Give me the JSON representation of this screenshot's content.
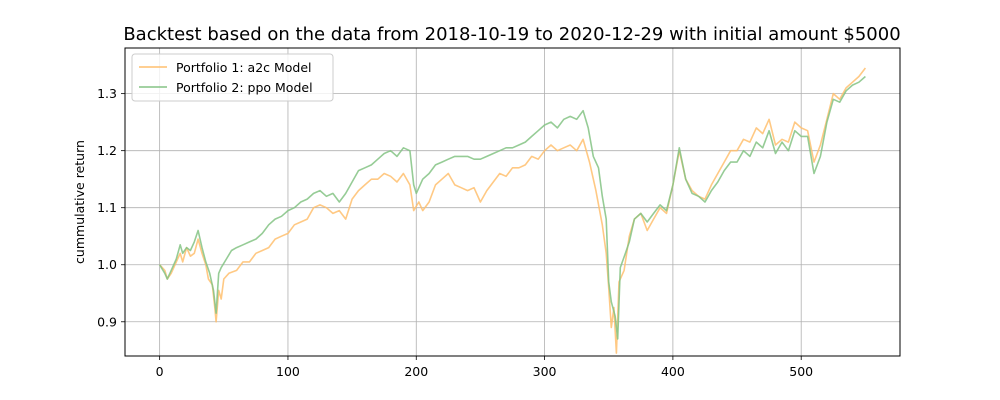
{
  "chart_data": {
    "type": "line",
    "title": "Backtest based on the data from 2018-10-19 to 2020-12-29 with initial amount $5000",
    "xlabel": "",
    "ylabel": "cummulative return",
    "xlim": [
      -27,
      577
    ],
    "ylim": [
      0.84,
      1.38
    ],
    "xticks": [
      0,
      100,
      200,
      300,
      400,
      500
    ],
    "yticks": [
      0.9,
      1.0,
      1.1,
      1.2,
      1.3
    ],
    "xtick_labels": [
      "0",
      "100",
      "200",
      "300",
      "400",
      "500"
    ],
    "ytick_labels": [
      "0.9",
      "1.0",
      "1.1",
      "1.2",
      "1.3"
    ],
    "grid": true,
    "legend_position": "top-left",
    "series": [
      {
        "name": "Portfolio 1: a2c Model",
        "color": "#ffbf6e",
        "points": [
          [
            0,
            1.0
          ],
          [
            4,
            0.99
          ],
          [
            6,
            0.975
          ],
          [
            9,
            0.985
          ],
          [
            13,
            1.005
          ],
          [
            16,
            1.02
          ],
          [
            18,
            1.005
          ],
          [
            21,
            1.03
          ],
          [
            24,
            1.015
          ],
          [
            27,
            1.02
          ],
          [
            30,
            1.045
          ],
          [
            33,
            1.02
          ],
          [
            36,
            1.0
          ],
          [
            38,
            0.975
          ],
          [
            41,
            0.965
          ],
          [
            43,
            0.925
          ],
          [
            44,
            0.9
          ],
          [
            46,
            0.955
          ],
          [
            48,
            0.94
          ],
          [
            50,
            0.975
          ],
          [
            54,
            0.985
          ],
          [
            60,
            0.99
          ],
          [
            65,
            1.005
          ],
          [
            70,
            1.005
          ],
          [
            75,
            1.02
          ],
          [
            80,
            1.025
          ],
          [
            85,
            1.03
          ],
          [
            90,
            1.045
          ],
          [
            95,
            1.05
          ],
          [
            100,
            1.055
          ],
          [
            105,
            1.07
          ],
          [
            110,
            1.075
          ],
          [
            115,
            1.08
          ],
          [
            120,
            1.1
          ],
          [
            125,
            1.105
          ],
          [
            130,
            1.1
          ],
          [
            135,
            1.09
          ],
          [
            140,
            1.095
          ],
          [
            145,
            1.08
          ],
          [
            150,
            1.115
          ],
          [
            155,
            1.13
          ],
          [
            160,
            1.14
          ],
          [
            165,
            1.15
          ],
          [
            170,
            1.15
          ],
          [
            175,
            1.16
          ],
          [
            180,
            1.155
          ],
          [
            185,
            1.145
          ],
          [
            190,
            1.16
          ],
          [
            195,
            1.14
          ],
          [
            198,
            1.095
          ],
          [
            202,
            1.11
          ],
          [
            205,
            1.095
          ],
          [
            210,
            1.11
          ],
          [
            215,
            1.14
          ],
          [
            220,
            1.15
          ],
          [
            225,
            1.16
          ],
          [
            230,
            1.14
          ],
          [
            235,
            1.135
          ],
          [
            240,
            1.13
          ],
          [
            245,
            1.135
          ],
          [
            250,
            1.11
          ],
          [
            255,
            1.13
          ],
          [
            260,
            1.145
          ],
          [
            265,
            1.16
          ],
          [
            270,
            1.155
          ],
          [
            275,
            1.17
          ],
          [
            280,
            1.17
          ],
          [
            285,
            1.175
          ],
          [
            290,
            1.19
          ],
          [
            295,
            1.185
          ],
          [
            300,
            1.2
          ],
          [
            305,
            1.21
          ],
          [
            310,
            1.2
          ],
          [
            315,
            1.205
          ],
          [
            320,
            1.21
          ],
          [
            325,
            1.2
          ],
          [
            330,
            1.22
          ],
          [
            335,
            1.18
          ],
          [
            340,
            1.13
          ],
          [
            345,
            1.07
          ],
          [
            348,
            1.02
          ],
          [
            350,
            0.96
          ],
          [
            352,
            0.89
          ],
          [
            354,
            0.925
          ],
          [
            356,
            0.845
          ],
          [
            358,
            0.97
          ],
          [
            362,
            0.99
          ],
          [
            366,
            1.05
          ],
          [
            370,
            1.08
          ],
          [
            375,
            1.09
          ],
          [
            380,
            1.06
          ],
          [
            385,
            1.08
          ],
          [
            390,
            1.1
          ],
          [
            395,
            1.09
          ],
          [
            400,
            1.14
          ],
          [
            405,
            1.2
          ],
          [
            410,
            1.15
          ],
          [
            415,
            1.13
          ],
          [
            420,
            1.12
          ],
          [
            425,
            1.115
          ],
          [
            430,
            1.14
          ],
          [
            435,
            1.16
          ],
          [
            440,
            1.18
          ],
          [
            445,
            1.2
          ],
          [
            450,
            1.2
          ],
          [
            455,
            1.22
          ],
          [
            460,
            1.215
          ],
          [
            465,
            1.24
          ],
          [
            470,
            1.23
          ],
          [
            475,
            1.255
          ],
          [
            480,
            1.21
          ],
          [
            485,
            1.22
          ],
          [
            490,
            1.215
          ],
          [
            495,
            1.25
          ],
          [
            500,
            1.24
          ],
          [
            505,
            1.235
          ],
          [
            510,
            1.18
          ],
          [
            515,
            1.21
          ],
          [
            520,
            1.255
          ],
          [
            525,
            1.3
          ],
          [
            530,
            1.29
          ],
          [
            535,
            1.31
          ],
          [
            540,
            1.32
          ],
          [
            545,
            1.33
          ],
          [
            550,
            1.345
          ]
        ]
      },
      {
        "name": "Portfolio 2: ppo Model",
        "color": "#84c384",
        "points": [
          [
            0,
            1.0
          ],
          [
            4,
            0.985
          ],
          [
            6,
            0.975
          ],
          [
            9,
            0.99
          ],
          [
            13,
            1.01
          ],
          [
            16,
            1.035
          ],
          [
            18,
            1.02
          ],
          [
            21,
            1.03
          ],
          [
            24,
            1.025
          ],
          [
            27,
            1.04
          ],
          [
            30,
            1.06
          ],
          [
            33,
            1.03
          ],
          [
            36,
            1.005
          ],
          [
            39,
            0.985
          ],
          [
            42,
            0.955
          ],
          [
            44,
            0.915
          ],
          [
            46,
            0.985
          ],
          [
            48,
            0.995
          ],
          [
            52,
            1.01
          ],
          [
            56,
            1.025
          ],
          [
            60,
            1.03
          ],
          [
            65,
            1.035
          ],
          [
            70,
            1.04
          ],
          [
            75,
            1.045
          ],
          [
            80,
            1.055
          ],
          [
            85,
            1.07
          ],
          [
            90,
            1.08
          ],
          [
            95,
            1.085
          ],
          [
            100,
            1.095
          ],
          [
            105,
            1.1
          ],
          [
            110,
            1.11
          ],
          [
            115,
            1.115
          ],
          [
            120,
            1.125
          ],
          [
            125,
            1.13
          ],
          [
            130,
            1.12
          ],
          [
            135,
            1.125
          ],
          [
            140,
            1.11
          ],
          [
            145,
            1.125
          ],
          [
            150,
            1.145
          ],
          [
            155,
            1.165
          ],
          [
            160,
            1.17
          ],
          [
            165,
            1.175
          ],
          [
            170,
            1.185
          ],
          [
            175,
            1.195
          ],
          [
            180,
            1.2
          ],
          [
            185,
            1.19
          ],
          [
            190,
            1.205
          ],
          [
            195,
            1.2
          ],
          [
            198,
            1.14
          ],
          [
            200,
            1.125
          ],
          [
            205,
            1.15
          ],
          [
            210,
            1.16
          ],
          [
            215,
            1.175
          ],
          [
            220,
            1.18
          ],
          [
            225,
            1.185
          ],
          [
            230,
            1.19
          ],
          [
            235,
            1.19
          ],
          [
            240,
            1.19
          ],
          [
            245,
            1.185
          ],
          [
            250,
            1.185
          ],
          [
            255,
            1.19
          ],
          [
            260,
            1.195
          ],
          [
            265,
            1.2
          ],
          [
            270,
            1.205
          ],
          [
            275,
            1.205
          ],
          [
            280,
            1.21
          ],
          [
            285,
            1.215
          ],
          [
            290,
            1.225
          ],
          [
            295,
            1.235
          ],
          [
            300,
            1.245
          ],
          [
            305,
            1.25
          ],
          [
            310,
            1.24
          ],
          [
            315,
            1.255
          ],
          [
            320,
            1.26
          ],
          [
            325,
            1.255
          ],
          [
            330,
            1.27
          ],
          [
            334,
            1.24
          ],
          [
            338,
            1.19
          ],
          [
            342,
            1.17
          ],
          [
            345,
            1.12
          ],
          [
            348,
            1.08
          ],
          [
            350,
            0.97
          ],
          [
            352,
            0.935
          ],
          [
            355,
            0.91
          ],
          [
            357,
            0.87
          ],
          [
            359,
            0.995
          ],
          [
            363,
            1.02
          ],
          [
            366,
            1.04
          ],
          [
            370,
            1.08
          ],
          [
            375,
            1.09
          ],
          [
            380,
            1.075
          ],
          [
            385,
            1.09
          ],
          [
            390,
            1.105
          ],
          [
            395,
            1.095
          ],
          [
            400,
            1.14
          ],
          [
            405,
            1.205
          ],
          [
            410,
            1.15
          ],
          [
            415,
            1.125
          ],
          [
            420,
            1.12
          ],
          [
            425,
            1.11
          ],
          [
            430,
            1.13
          ],
          [
            435,
            1.145
          ],
          [
            440,
            1.165
          ],
          [
            445,
            1.18
          ],
          [
            450,
            1.18
          ],
          [
            455,
            1.2
          ],
          [
            460,
            1.19
          ],
          [
            465,
            1.215
          ],
          [
            470,
            1.205
          ],
          [
            475,
            1.235
          ],
          [
            480,
            1.195
          ],
          [
            485,
            1.215
          ],
          [
            490,
            1.2
          ],
          [
            495,
            1.235
          ],
          [
            500,
            1.225
          ],
          [
            505,
            1.225
          ],
          [
            510,
            1.16
          ],
          [
            515,
            1.19
          ],
          [
            520,
            1.25
          ],
          [
            525,
            1.29
          ],
          [
            530,
            1.285
          ],
          [
            535,
            1.305
          ],
          [
            540,
            1.315
          ],
          [
            545,
            1.32
          ],
          [
            550,
            1.33
          ]
        ]
      }
    ]
  }
}
